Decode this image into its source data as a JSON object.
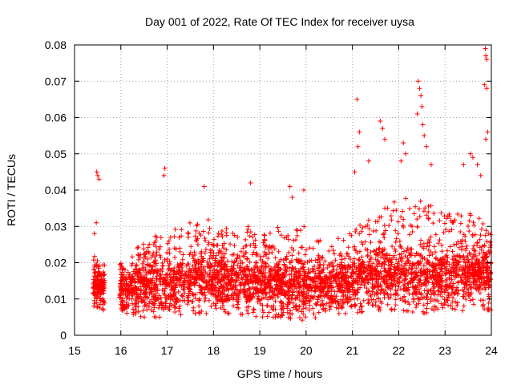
{
  "chart_data": {
    "type": "scatter",
    "title": "Day 001 of 2022, Rate Of TEC Index for receiver uysa",
    "xlabel": "GPS time / hours",
    "ylabel": "ROTI / TECUs",
    "xlim": [
      15,
      24
    ],
    "ylim": [
      0,
      0.08
    ],
    "xticks": [
      15,
      16,
      17,
      18,
      19,
      20,
      21,
      22,
      23,
      24
    ],
    "yticks": [
      0,
      0.01,
      0.02,
      0.03,
      0.04,
      0.05,
      0.06,
      0.07,
      0.08
    ],
    "xtick_labels": [
      "15",
      "16",
      "17",
      "18",
      "19",
      "20",
      "21",
      "22",
      "23",
      "24"
    ],
    "ytick_labels": [
      "0",
      "0.01",
      "0.02",
      "0.03",
      "0.04",
      "0.05",
      "0.06",
      "0.07",
      "0.08"
    ],
    "grid": true,
    "marker": "+",
    "color": "#ff0000",
    "bulk_profile": {
      "x": [
        15.45,
        15.6,
        16.0,
        16.5,
        17.0,
        17.5,
        18.0,
        18.5,
        19.0,
        19.5,
        20.0,
        20.5,
        21.0,
        21.5,
        22.0,
        22.5,
        23.0,
        23.5,
        24.0
      ],
      "y_low": [
        0.007,
        0.007,
        0.006,
        0.005,
        0.005,
        0.006,
        0.006,
        0.006,
        0.005,
        0.005,
        0.004,
        0.006,
        0.006,
        0.007,
        0.007,
        0.006,
        0.006,
        0.007,
        0.007
      ],
      "y_typical": [
        0.013,
        0.013,
        0.012,
        0.013,
        0.014,
        0.014,
        0.015,
        0.014,
        0.013,
        0.013,
        0.013,
        0.013,
        0.014,
        0.016,
        0.016,
        0.015,
        0.015,
        0.016,
        0.017
      ],
      "y_high": [
        0.022,
        0.02,
        0.02,
        0.026,
        0.03,
        0.031,
        0.033,
        0.031,
        0.029,
        0.03,
        0.031,
        0.025,
        0.03,
        0.036,
        0.038,
        0.038,
        0.033,
        0.036,
        0.03
      ]
    },
    "outliers": [
      {
        "x": 15.48,
        "y": 0.045
      },
      {
        "x": 15.5,
        "y": 0.044
      },
      {
        "x": 15.53,
        "y": 0.043
      },
      {
        "x": 15.47,
        "y": 0.031
      },
      {
        "x": 15.43,
        "y": 0.028
      },
      {
        "x": 16.95,
        "y": 0.046
      },
      {
        "x": 16.93,
        "y": 0.044
      },
      {
        "x": 17.8,
        "y": 0.041
      },
      {
        "x": 18.8,
        "y": 0.042
      },
      {
        "x": 19.65,
        "y": 0.041
      },
      {
        "x": 19.95,
        "y": 0.04
      },
      {
        "x": 19.7,
        "y": 0.038
      },
      {
        "x": 21.1,
        "y": 0.065
      },
      {
        "x": 21.15,
        "y": 0.056
      },
      {
        "x": 21.12,
        "y": 0.052
      },
      {
        "x": 21.35,
        "y": 0.048
      },
      {
        "x": 21.05,
        "y": 0.045
      },
      {
        "x": 21.6,
        "y": 0.059
      },
      {
        "x": 21.65,
        "y": 0.057
      },
      {
        "x": 21.7,
        "y": 0.054
      },
      {
        "x": 22.1,
        "y": 0.053
      },
      {
        "x": 22.15,
        "y": 0.05
      },
      {
        "x": 22.05,
        "y": 0.048
      },
      {
        "x": 22.42,
        "y": 0.07
      },
      {
        "x": 22.45,
        "y": 0.068
      },
      {
        "x": 22.48,
        "y": 0.066
      },
      {
        "x": 22.5,
        "y": 0.063
      },
      {
        "x": 22.4,
        "y": 0.061
      },
      {
        "x": 22.52,
        "y": 0.058
      },
      {
        "x": 22.55,
        "y": 0.055
      },
      {
        "x": 22.6,
        "y": 0.052
      },
      {
        "x": 22.7,
        "y": 0.047
      },
      {
        "x": 23.4,
        "y": 0.047
      },
      {
        "x": 23.55,
        "y": 0.05
      },
      {
        "x": 23.6,
        "y": 0.049
      },
      {
        "x": 23.7,
        "y": 0.047
      },
      {
        "x": 23.77,
        "y": 0.044
      },
      {
        "x": 23.87,
        "y": 0.079
      },
      {
        "x": 23.88,
        "y": 0.077
      },
      {
        "x": 23.9,
        "y": 0.076
      },
      {
        "x": 23.85,
        "y": 0.069
      },
      {
        "x": 23.9,
        "y": 0.068
      },
      {
        "x": 23.92,
        "y": 0.056
      },
      {
        "x": 23.88,
        "y": 0.054
      }
    ]
  }
}
